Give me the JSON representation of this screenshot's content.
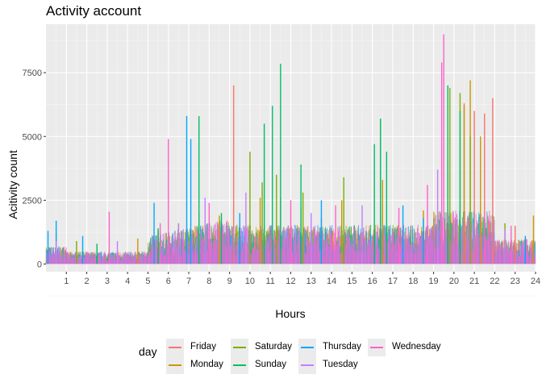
{
  "chart_data": {
    "type": "line",
    "title": "Activity account",
    "xlabel": "Hours",
    "ylabel": "Acitivity count",
    "xlim": [
      0,
      24
    ],
    "ylim": [
      -300,
      9400
    ],
    "x_ticks": [
      1,
      2,
      3,
      4,
      5,
      6,
      7,
      8,
      9,
      10,
      11,
      12,
      13,
      14,
      15,
      16,
      17,
      18,
      19,
      20,
      21,
      22,
      23,
      24
    ],
    "y_ticks": [
      0,
      2500,
      5000,
      7500
    ],
    "y_tick_labels": [
      "0",
      "2500",
      "5000",
      "7500"
    ],
    "grid": true,
    "legend": {
      "title": "day",
      "position": "bottom",
      "entries": [
        {
          "name": "Friday",
          "color": "#F8766D"
        },
        {
          "name": "Saturday",
          "color": "#7CAE00"
        },
        {
          "name": "Thursday",
          "color": "#00A9FF"
        },
        {
          "name": "Wednesday",
          "color": "#FF61CC"
        },
        {
          "name": "Monday",
          "color": "#CD9600"
        },
        {
          "name": "Sunday",
          "color": "#00BE67"
        },
        {
          "name": "Tuesday",
          "color": "#C77CFF"
        }
      ]
    },
    "series": [
      {
        "name": "Friday",
        "color": "#F8766D",
        "x": [
          0.5,
          3.5,
          5.5,
          7.5,
          9.2,
          11.5,
          13.5,
          16.5,
          19.7,
          20.5,
          21.0,
          21.5,
          21.9,
          23.0
        ],
        "y": [
          800,
          500,
          1300,
          2000,
          7000,
          2600,
          1800,
          2000,
          4000,
          6300,
          6000,
          5900,
          6500,
          1500
        ]
      },
      {
        "name": "Monday",
        "color": "#CD9600",
        "x": [
          0.5,
          4.5,
          6.5,
          8.5,
          10.5,
          12.5,
          14.5,
          16.5,
          18.5,
          20.5,
          20.8,
          21.3,
          23.9
        ],
        "y": [
          1200,
          1000,
          1600,
          1900,
          2600,
          2200,
          2500,
          3300,
          2100,
          6200,
          7200,
          5000,
          1900
        ]
      },
      {
        "name": "Saturday",
        "color": "#7CAE00",
        "x": [
          1.5,
          5.5,
          7.5,
          10.0,
          10.6,
          11.3,
          12.6,
          14.6,
          16.4,
          19.8,
          20.3,
          20.8,
          22.5
        ],
        "y": [
          900,
          1200,
          2000,
          4400,
          3200,
          3500,
          2800,
          3400,
          5700,
          6900,
          6700,
          5000,
          1600
        ]
      },
      {
        "name": "Sunday",
        "color": "#00BE67",
        "x": [
          2.5,
          5.5,
          7.5,
          8.6,
          10.7,
          11.1,
          11.5,
          12.5,
          16.1,
          16.4,
          16.7,
          19.7,
          20.3
        ],
        "y": [
          800,
          1400,
          5800,
          2000,
          5500,
          6200,
          7850,
          3900,
          4700,
          5700,
          4400,
          7000,
          6000
        ]
      },
      {
        "name": "Thursday",
        "color": "#00A9FF",
        "x": [
          0.1,
          0.5,
          1.8,
          5.3,
          6.9,
          7.1,
          9.5,
          13.5,
          17.5,
          18.5,
          23.5
        ],
        "y": [
          1300,
          1700,
          1100,
          2400,
          5800,
          4900,
          2000,
          2500,
          2300,
          1800,
          1100
        ]
      },
      {
        "name": "Tuesday",
        "color": "#C77CFF",
        "x": [
          0.5,
          3.5,
          6.5,
          7.8,
          9.8,
          13.0,
          15.5,
          19.2,
          22.5
        ],
        "y": [
          900,
          900,
          1600,
          2600,
          2800,
          2000,
          2300,
          3700,
          1400
        ]
      },
      {
        "name": "Wednesday",
        "color": "#FF61CC",
        "x": [
          3.1,
          5.6,
          6.0,
          8.0,
          12.0,
          14.2,
          17.3,
          18.7,
          19.4,
          19.5,
          21.5,
          22.8
        ],
        "y": [
          2050,
          1600,
          4900,
          2400,
          2500,
          2300,
          2200,
          3100,
          7900,
          9000,
          2000,
          1500
        ]
      }
    ]
  }
}
